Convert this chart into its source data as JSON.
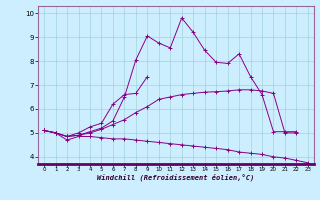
{
  "xlabel": "Windchill (Refroidissement éolien,°C)",
  "ylabel": "",
  "background_color": "#cceeff",
  "line_color": "#880088",
  "xlim": [
    -0.5,
    23.5
  ],
  "ylim": [
    3.7,
    10.3
  ],
  "xticks": [
    0,
    1,
    2,
    3,
    4,
    5,
    6,
    7,
    8,
    9,
    10,
    11,
    12,
    13,
    14,
    15,
    16,
    17,
    18,
    19,
    20,
    21,
    22,
    23
  ],
  "yticks": [
    4,
    5,
    6,
    7,
    8,
    9,
    10
  ],
  "series": [
    {
      "x": [
        0,
        1,
        2,
        3,
        4,
        5,
        6,
        7,
        8,
        9,
        10,
        11,
        12,
        13,
        14,
        15,
        16,
        17,
        18,
        19,
        20,
        21,
        22,
        23
      ],
      "y": [
        5.1,
        5.0,
        4.7,
        4.85,
        4.85,
        4.8,
        4.75,
        4.75,
        4.7,
        4.65,
        4.6,
        4.55,
        4.5,
        4.45,
        4.4,
        4.35,
        4.3,
        4.2,
        4.15,
        4.1,
        4.0,
        3.95,
        3.85,
        3.75
      ]
    },
    {
      "x": [
        0,
        1,
        2,
        3,
        4,
        5,
        6,
        7,
        8,
        9,
        10,
        11,
        12,
        13,
        14,
        15,
        16,
        17,
        18,
        19,
        20,
        21,
        22
      ],
      "y": [
        5.1,
        5.0,
        4.85,
        4.9,
        5.0,
        5.15,
        5.35,
        5.55,
        5.85,
        6.1,
        6.4,
        6.5,
        6.6,
        6.65,
        6.7,
        6.72,
        6.75,
        6.8,
        6.8,
        6.75,
        6.65,
        5.0,
        5.0
      ]
    },
    {
      "x": [
        0,
        1,
        2,
        3,
        4,
        5,
        6,
        7,
        8,
        9,
        10,
        11,
        12,
        13,
        14,
        15,
        16,
        17,
        18,
        19,
        20,
        21,
        22
      ],
      "y": [
        5.1,
        5.0,
        4.85,
        4.9,
        5.05,
        5.2,
        5.5,
        6.5,
        8.05,
        9.05,
        8.75,
        8.55,
        9.8,
        9.2,
        8.45,
        7.95,
        7.9,
        8.3,
        7.35,
        6.6,
        5.05,
        5.05,
        5.05
      ]
    },
    {
      "x": [
        0,
        1,
        2,
        3,
        4,
        5,
        6,
        7,
        8,
        9
      ],
      "y": [
        5.1,
        5.0,
        4.85,
        5.0,
        5.25,
        5.4,
        6.2,
        6.6,
        6.65,
        7.35
      ]
    }
  ]
}
